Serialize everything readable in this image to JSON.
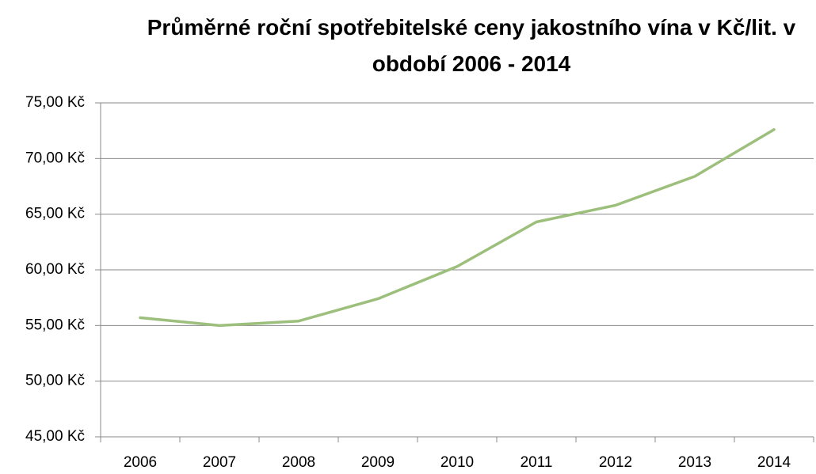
{
  "chart_data": {
    "type": "line",
    "title": "Průměrné roční spotřebitelské ceny jakostního vína v Kč/lit. v období 2006 - 2014",
    "categories": [
      "2006",
      "2007",
      "2008",
      "2009",
      "2010",
      "2011",
      "2012",
      "2013",
      "2014"
    ],
    "series": [
      {
        "color": "#9dbf7c",
        "values": [
          55.7,
          55.0,
          55.4,
          57.4,
          60.3,
          64.3,
          65.8,
          68.4,
          72.6
        ]
      }
    ],
    "ylim": [
      45,
      75
    ],
    "yticks": [
      {
        "value": 45,
        "label": "45,00 Kč"
      },
      {
        "value": 50,
        "label": "50,00 Kč"
      },
      {
        "value": 55,
        "label": "55,00 Kč"
      },
      {
        "value": 60,
        "label": "60,00 Kč"
      },
      {
        "value": 65,
        "label": "65,00 Kč"
      },
      {
        "value": 70,
        "label": "70,00 Kč"
      },
      {
        "value": 75,
        "label": "75,00 Kč"
      }
    ],
    "grid": true
  }
}
